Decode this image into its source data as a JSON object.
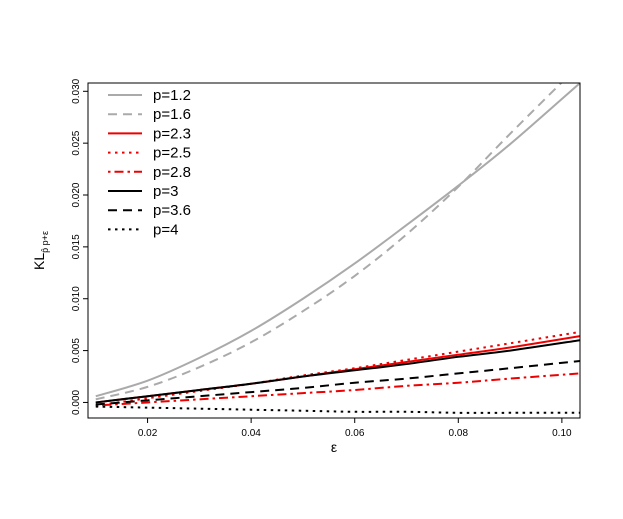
{
  "chart_data": {
    "type": "line",
    "xlabel": "ε",
    "ylabel": {
      "main": "KL",
      "sub": "p̂ p+ε"
    },
    "xlim": [
      0.0085,
      0.1035
    ],
    "ylim": [
      -0.0015,
      0.0308
    ],
    "xticks": [
      0.02,
      0.04,
      0.06,
      0.08,
      0.1
    ],
    "xtick_labels": [
      "0.02",
      "0.04",
      "0.06",
      "0.08",
      "0.10"
    ],
    "yticks": [
      0.0,
      0.005,
      0.01,
      0.015,
      0.02,
      0.025,
      0.03
    ],
    "ytick_labels": [
      "0.000",
      "0.005",
      "0.010",
      "0.015",
      "0.020",
      "0.025",
      "0.030"
    ],
    "grid": false,
    "legend_position": "top-left",
    "x": [
      0.01,
      0.02,
      0.03,
      0.04,
      0.05,
      0.06,
      0.07,
      0.08,
      0.09,
      0.1035
    ],
    "series": [
      {
        "name": "p=1.2",
        "color": "#aaaaaa",
        "dash": "solid",
        "values": [
          0.0006,
          0.0021,
          0.0043,
          0.0069,
          0.01,
          0.0134,
          0.0171,
          0.0209,
          0.0249,
          0.0308
        ]
      },
      {
        "name": "p=1.6",
        "color": "#aaaaaa",
        "dash": "dashed",
        "values": [
          0.0003,
          0.0015,
          0.0034,
          0.0058,
          0.0088,
          0.0122,
          0.0162,
          0.0208,
          0.0259,
          0.0326
        ]
      },
      {
        "name": "p=2.3",
        "color": "#ee0000",
        "dash": "solid",
        "values": [
          0.0,
          0.0006,
          0.0012,
          0.0018,
          0.0025,
          0.0032,
          0.0039,
          0.0046,
          0.0053,
          0.0064
        ]
      },
      {
        "name": "p=2.5",
        "color": "#ee0000",
        "dash": "dotted",
        "values": [
          -0.0003,
          0.0004,
          0.0011,
          0.0018,
          0.0026,
          0.0033,
          0.0041,
          0.0049,
          0.0057,
          0.0068
        ]
      },
      {
        "name": "p=2.8",
        "color": "#ee0000",
        "dash": "dotdash",
        "values": [
          -0.0003,
          0.0,
          0.0003,
          0.0006,
          0.0009,
          0.0012,
          0.0016,
          0.0019,
          0.0023,
          0.0028
        ]
      },
      {
        "name": "p=3",
        "color": "#000000",
        "dash": "solid",
        "values": [
          0.0,
          0.0006,
          0.0012,
          0.0018,
          0.0025,
          0.0031,
          0.0037,
          0.0044,
          0.005,
          0.006
        ]
      },
      {
        "name": "p=3.6",
        "color": "#000000",
        "dash": "dashed",
        "values": [
          -0.0002,
          0.0002,
          0.0006,
          0.001,
          0.0014,
          0.0019,
          0.0023,
          0.0028,
          0.0033,
          0.004
        ]
      },
      {
        "name": "p=4",
        "color": "#000000",
        "dash": "dotted",
        "values": [
          -0.0004,
          -0.0005,
          -0.0006,
          -0.0007,
          -0.0008,
          -0.0009,
          -0.0009,
          -0.001,
          -0.001,
          -0.001
        ]
      }
    ]
  }
}
